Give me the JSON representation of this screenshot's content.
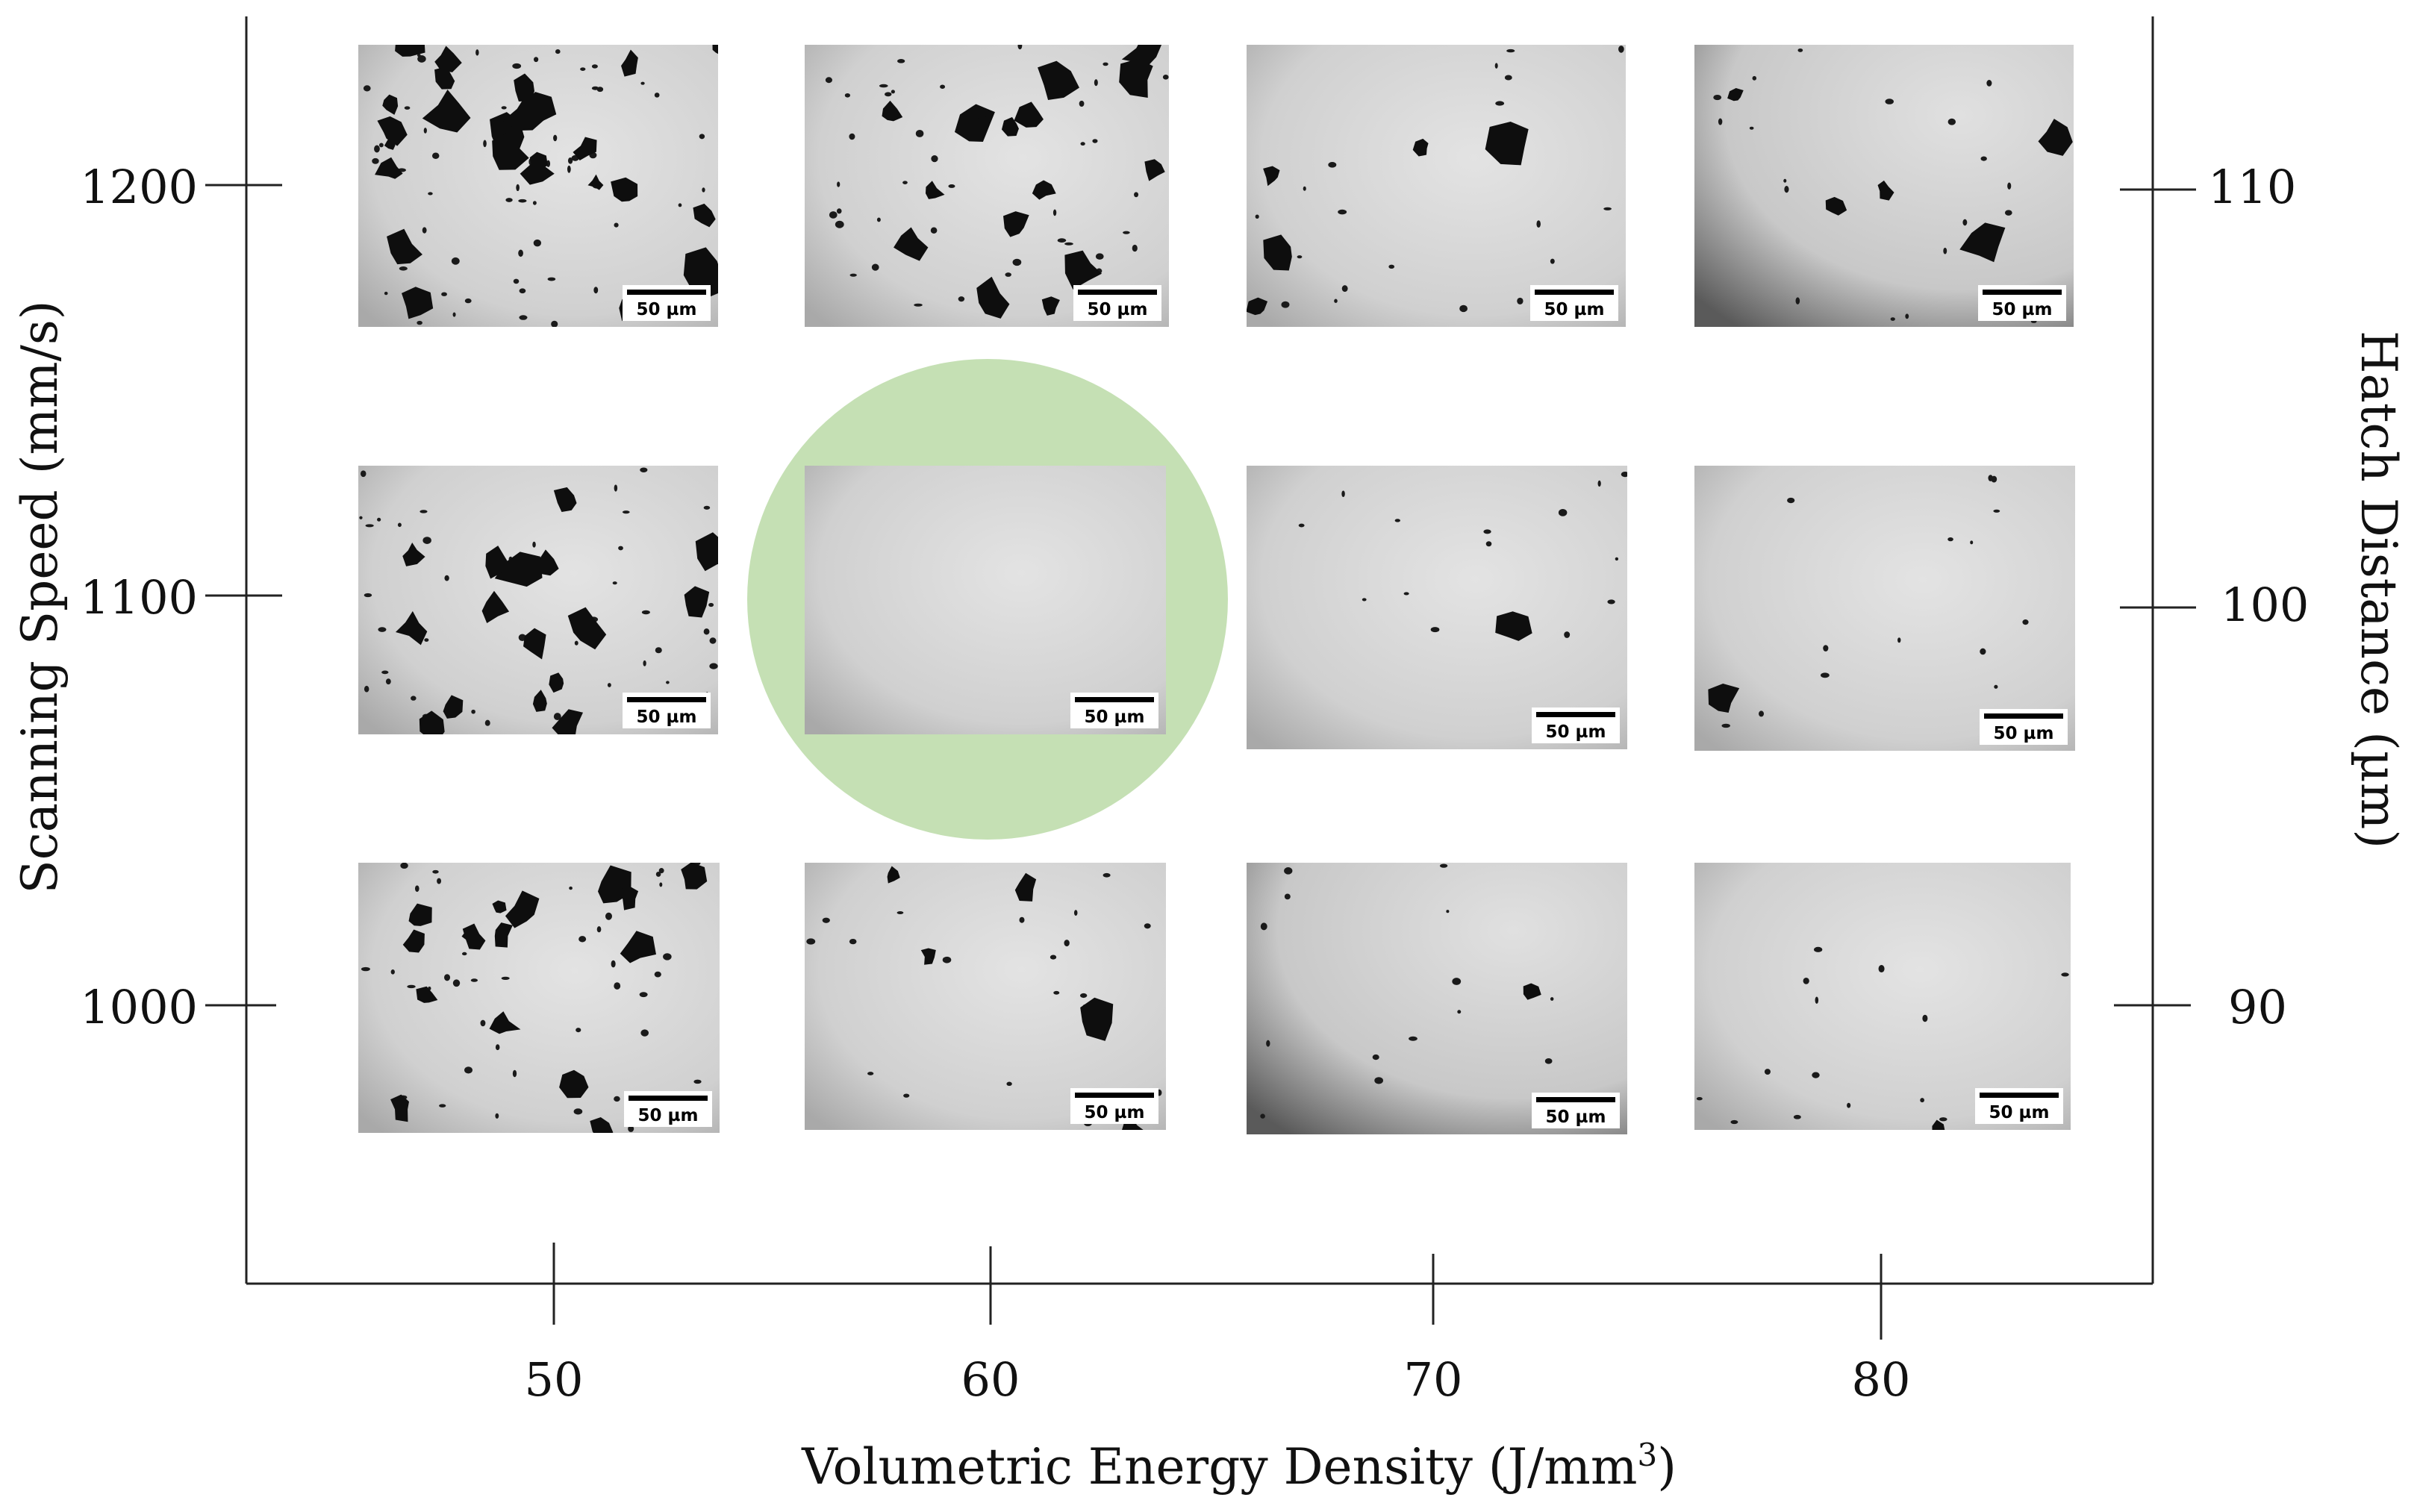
{
  "axes": {
    "x_title": "Volumetric Energy Density (J/mm",
    "x_title_sup": "3",
    "x_title_end": ")",
    "y_left_title": "Scanning Speed (mm/s)",
    "y_right_title": "Hatch Distance (µm)",
    "x_ticks": [
      "50",
      "60",
      "70",
      "80"
    ],
    "y_left_ticks": [
      "1200",
      "1100",
      "1000"
    ],
    "y_right_ticks": [
      "110",
      "100",
      "90"
    ]
  },
  "micrographs": {
    "scale_bar_label": "50 µm",
    "rows": [
      {
        "scanning_speed": "1200",
        "hatch_distance": "110",
        "porosity": [
          "very-high",
          "high",
          "low",
          "low"
        ]
      },
      {
        "scanning_speed": "1100",
        "hatch_distance": "100",
        "porosity": [
          "high",
          "none",
          "very-low",
          "very-low"
        ]
      },
      {
        "scanning_speed": "1000",
        "hatch_distance": "90",
        "porosity": [
          "high",
          "low",
          "very-low",
          "very-low"
        ]
      }
    ],
    "columns_energy_density": [
      "50",
      "60",
      "70",
      "80"
    ],
    "highlighted": {
      "row": 1,
      "col": 1,
      "color": "#c5e0b4"
    }
  },
  "colors": {
    "axis": "#222222",
    "highlight": "#c5e0b4",
    "micrograph_bg": "#d4d4d4",
    "pore": "#111111"
  }
}
